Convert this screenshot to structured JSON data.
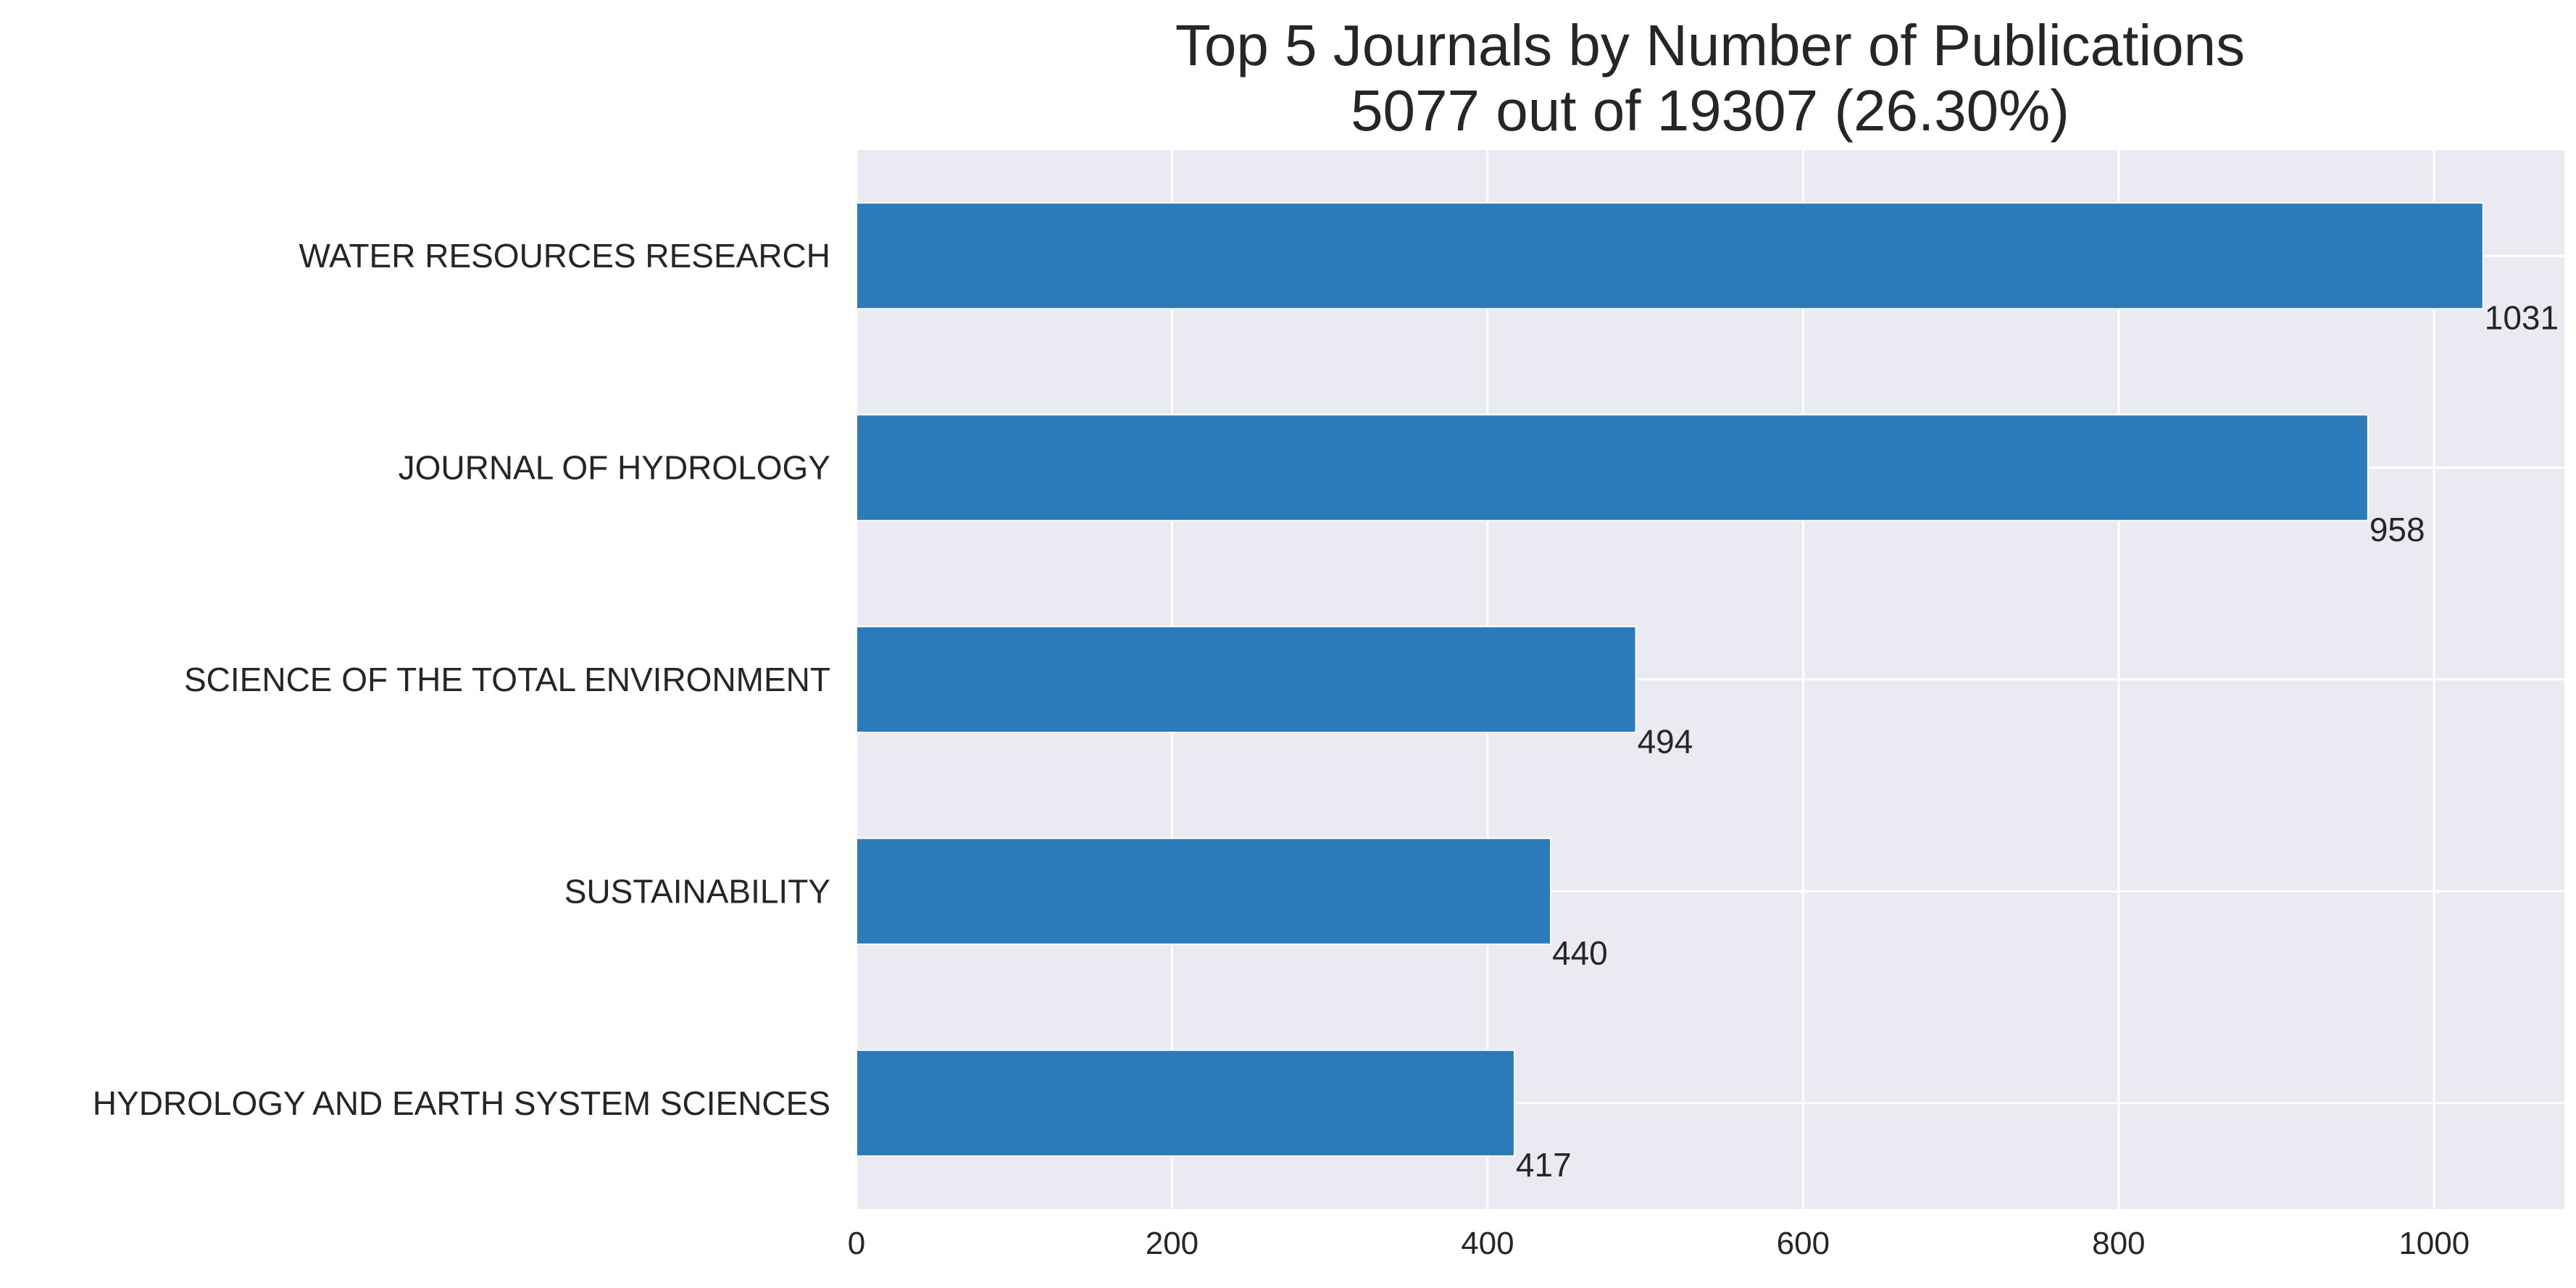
{
  "chart_data": {
    "type": "bar",
    "orientation": "horizontal",
    "title": "Top 5 Journals by Number of Publications",
    "subtitle": "5077 out of 19307 (26.30%)",
    "xlabel": "",
    "ylabel": "",
    "categories": [
      "WATER RESOURCES RESEARCH",
      "JOURNAL OF HYDROLOGY",
      "SCIENCE OF THE TOTAL ENVIRONMENT",
      "SUSTAINABILITY",
      "HYDROLOGY AND EARTH SYSTEM SCIENCES"
    ],
    "values": [
      1031,
      958,
      494,
      440,
      417
    ],
    "value_labels": [
      "1031",
      "958",
      "494",
      "440",
      "417"
    ],
    "xlim": [
      0,
      1082.55
    ],
    "xticks": [
      0,
      200,
      400,
      600,
      800,
      1000
    ],
    "xtick_labels": [
      "0",
      "200",
      "400",
      "600",
      "800",
      "1000"
    ],
    "grid": true,
    "legend": "none",
    "colors": {
      "bar": "#2b7bba",
      "plot_background": "#eaeaf2",
      "grid": "#ffffff",
      "text": "#262626"
    }
  }
}
